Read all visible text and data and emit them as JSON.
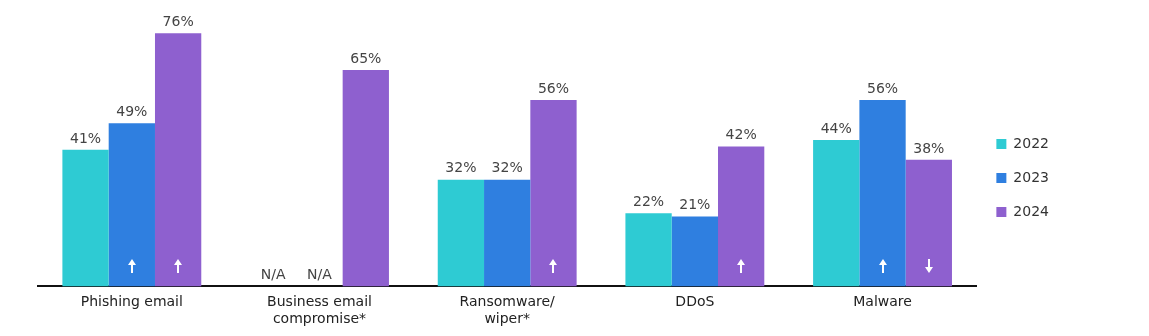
{
  "chart_data": {
    "type": "bar",
    "categories": [
      "Phishing email",
      "Business email compromise*",
      "Ransomware/wiper*",
      "DDoS",
      "Malware"
    ],
    "series": [
      {
        "name": "2022",
        "color": "#2ecbd3",
        "values": [
          41,
          null,
          32,
          22,
          44
        ],
        "value_labels": [
          "41%",
          "N/A",
          "32%",
          "22%",
          "44%"
        ]
      },
      {
        "name": "2023",
        "color": "#2f7fe0",
        "values": [
          49,
          null,
          32,
          21,
          56
        ],
        "value_labels": [
          "49%",
          "N/A",
          "32%",
          "21%",
          "56%"
        ]
      },
      {
        "name": "2024",
        "color": "#8e60cf",
        "values": [
          76,
          65,
          56,
          42,
          38
        ],
        "value_labels": [
          "76%",
          "65%",
          "56%",
          "42%",
          "38%"
        ]
      }
    ],
    "legend": "right",
    "grid": false
  }
}
